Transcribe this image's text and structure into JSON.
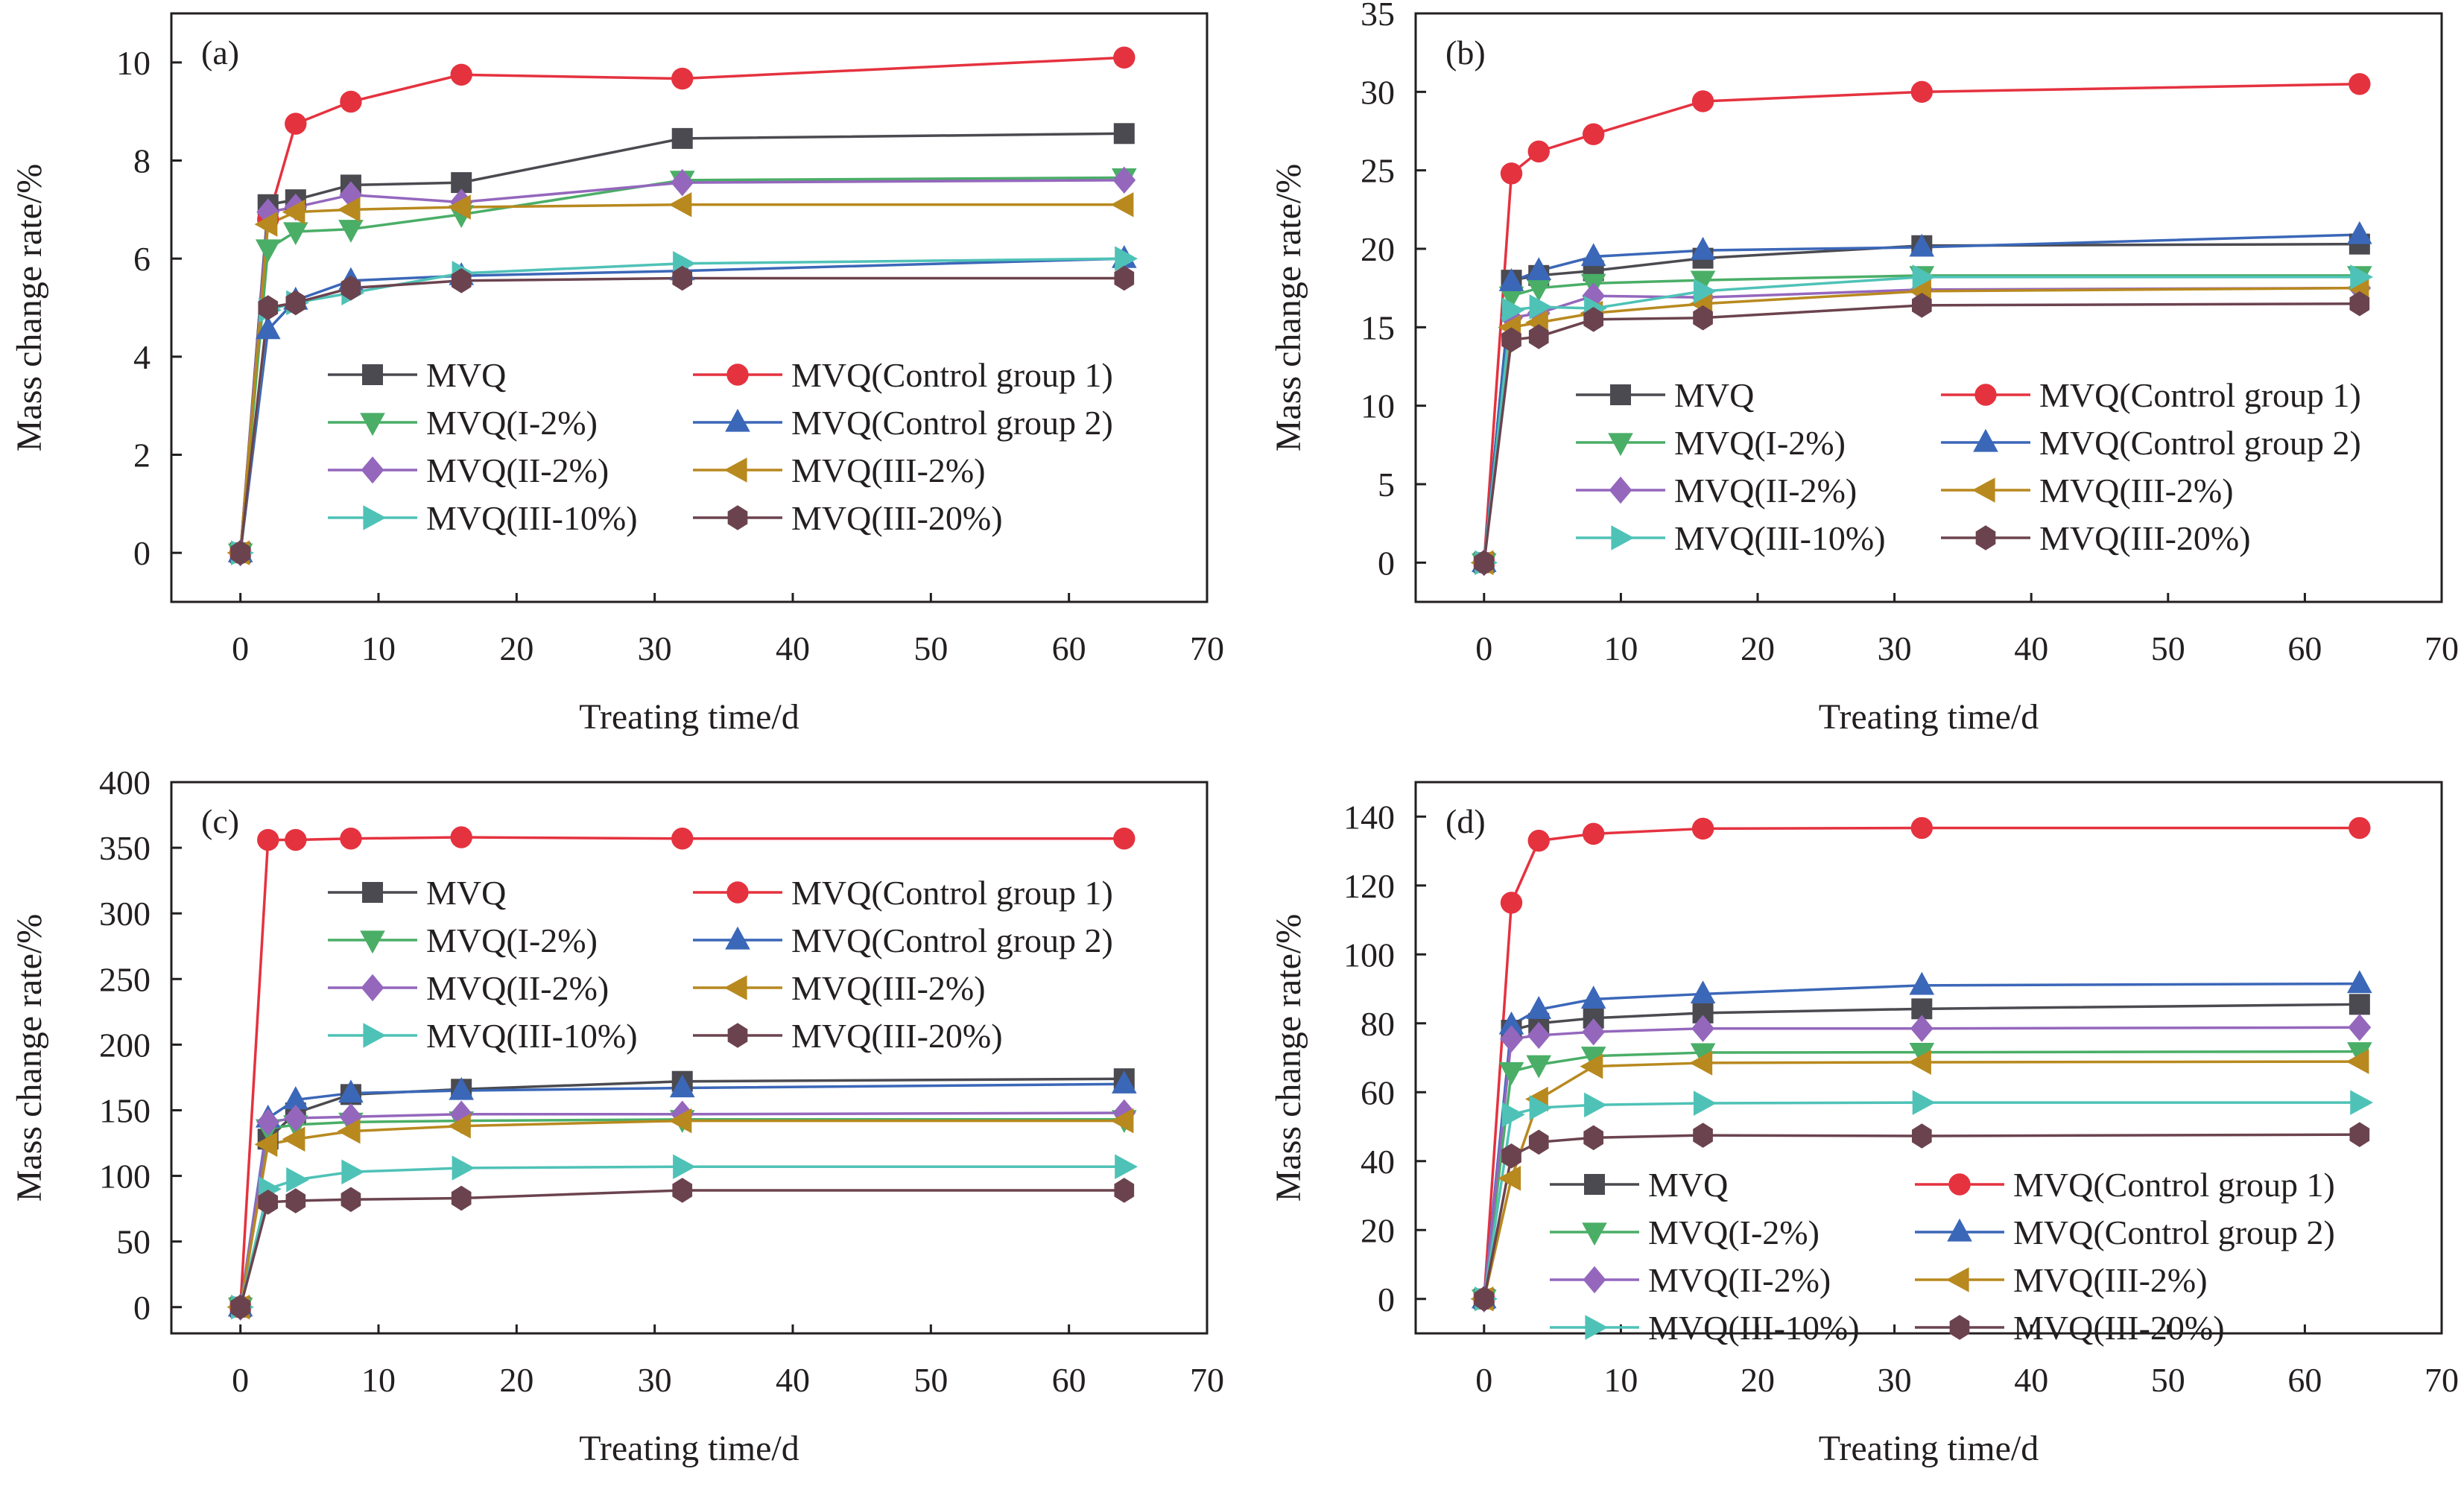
{
  "series_styles": [
    {
      "name": "MVQ",
      "color": "#4a4a50",
      "marker": "square"
    },
    {
      "name": "MVQ(Control group 1)",
      "color": "#e5323f",
      "marker": "circle"
    },
    {
      "name": "MVQ(I-2%)",
      "color": "#4aae67",
      "marker": "triangle-down"
    },
    {
      "name": "MVQ(Control group 2)",
      "color": "#3b67b8",
      "marker": "triangle-up"
    },
    {
      "name": "MVQ(II-2%)",
      "color": "#9467bd",
      "marker": "diamond"
    },
    {
      "name": "MVQ(III-2%)",
      "color": "#b8891e",
      "marker": "triangle-left"
    },
    {
      "name": "MVQ(III-10%)",
      "color": "#4fc2b7",
      "marker": "triangle-right"
    },
    {
      "name": "MVQ(III-20%)",
      "color": "#6b434e",
      "marker": "hexagon"
    }
  ],
  "chart_data": [
    {
      "type": "line",
      "panel_label": "(a)",
      "xlabel": "Treating time/d",
      "ylabel": "Mass change rate/%",
      "xlim": [
        -5,
        70
      ],
      "ylim": [
        -1,
        11
      ],
      "xticks": [
        0,
        10,
        20,
        30,
        40,
        50,
        60,
        70
      ],
      "yticks": [
        0,
        2,
        4,
        6,
        8,
        10
      ],
      "legend_position": "lower-right",
      "x": [
        0,
        2,
        4,
        8,
        16,
        32,
        64
      ],
      "series": [
        {
          "name": "MVQ",
          "values": [
            0,
            7.1,
            7.2,
            7.5,
            7.55,
            8.45,
            8.55
          ]
        },
        {
          "name": "MVQ(Control group 1)",
          "values": [
            0,
            6.8,
            8.75,
            9.2,
            9.75,
            9.67,
            10.1
          ]
        },
        {
          "name": "MVQ(I-2%)",
          "values": [
            0,
            6.2,
            6.55,
            6.6,
            6.9,
            7.6,
            7.65
          ]
        },
        {
          "name": "MVQ(Control group 2)",
          "values": [
            0,
            4.55,
            5.15,
            5.55,
            5.65,
            5.75,
            6.0
          ]
        },
        {
          "name": "MVQ(II-2%)",
          "values": [
            0,
            6.95,
            7.05,
            7.3,
            7.15,
            7.55,
            7.6
          ]
        },
        {
          "name": "MVQ(III-2%)",
          "values": [
            0,
            6.7,
            6.95,
            7.0,
            7.05,
            7.1,
            7.1
          ]
        },
        {
          "name": "MVQ(III-10%)",
          "values": [
            0,
            4.95,
            5.1,
            5.3,
            5.7,
            5.9,
            6.0
          ]
        },
        {
          "name": "MVQ(III-20%)",
          "values": [
            0,
            5.0,
            5.1,
            5.4,
            5.55,
            5.6,
            5.6
          ]
        }
      ]
    },
    {
      "type": "line",
      "panel_label": "(b)",
      "xlabel": "Treating time/d",
      "ylabel": "Mass change rate/%",
      "xlim": [
        -5,
        70
      ],
      "ylim": [
        -2.5,
        35
      ],
      "xticks": [
        0,
        10,
        20,
        30,
        40,
        50,
        60,
        70
      ],
      "yticks": [
        0,
        5,
        10,
        15,
        20,
        25,
        30,
        35
      ],
      "legend_position": "lower-right",
      "x": [
        0,
        2,
        4,
        8,
        16,
        32,
        64
      ],
      "series": [
        {
          "name": "MVQ",
          "values": [
            0,
            18.0,
            18.3,
            18.6,
            19.4,
            20.2,
            20.3
          ]
        },
        {
          "name": "MVQ(Control group 1)",
          "values": [
            0,
            24.8,
            26.2,
            27.3,
            29.4,
            30.0,
            30.5
          ]
        },
        {
          "name": "MVQ(I-2%)",
          "values": [
            0,
            17.0,
            17.5,
            17.8,
            18.0,
            18.3,
            18.3
          ]
        },
        {
          "name": "MVQ(Control group 2)",
          "values": [
            0,
            17.9,
            18.6,
            19.5,
            19.9,
            20.1,
            20.9
          ]
        },
        {
          "name": "MVQ(II-2%)",
          "values": [
            0,
            15.6,
            15.9,
            17.0,
            16.9,
            17.4,
            17.5
          ]
        },
        {
          "name": "MVQ(III-2%)",
          "values": [
            0,
            15.0,
            15.3,
            15.9,
            16.5,
            17.3,
            17.5
          ]
        },
        {
          "name": "MVQ(III-10%)",
          "values": [
            0,
            16.1,
            16.3,
            16.2,
            17.3,
            18.2,
            18.2
          ]
        },
        {
          "name": "MVQ(III-20%)",
          "values": [
            0,
            14.2,
            14.4,
            15.5,
            15.6,
            16.4,
            16.5
          ]
        }
      ]
    },
    {
      "type": "line",
      "panel_label": "(c)",
      "xlabel": "Treating time/d",
      "ylabel": "Mass change rate/%",
      "xlim": [
        -5,
        70
      ],
      "ylim": [
        -20,
        400
      ],
      "xticks": [
        0,
        10,
        20,
        30,
        40,
        50,
        60,
        70
      ],
      "yticks": [
        0,
        50,
        100,
        150,
        200,
        250,
        300,
        350,
        400
      ],
      "legend_position": "upper-right",
      "x": [
        0,
        2,
        4,
        8,
        16,
        32,
        64
      ],
      "series": [
        {
          "name": "MVQ",
          "values": [
            0,
            128,
            148,
            162,
            166,
            172,
            174
          ]
        },
        {
          "name": "MVQ(Control group 1)",
          "values": [
            0,
            356,
            356,
            357,
            358,
            357,
            357
          ]
        },
        {
          "name": "MVQ(I-2%)",
          "values": [
            0,
            136,
            139,
            141,
            142,
            143,
            143
          ]
        },
        {
          "name": "MVQ(Control group 2)",
          "values": [
            0,
            144,
            158,
            163,
            165,
            167,
            170
          ]
        },
        {
          "name": "MVQ(II-2%)",
          "values": [
            0,
            141,
            144,
            145,
            147,
            147,
            148
          ]
        },
        {
          "name": "MVQ(III-2%)",
          "values": [
            0,
            124,
            128,
            134,
            138,
            142,
            142
          ]
        },
        {
          "name": "MVQ(III-10%)",
          "values": [
            0,
            90,
            97,
            103,
            106,
            107,
            107
          ]
        },
        {
          "name": "MVQ(III-20%)",
          "values": [
            0,
            80,
            81,
            82,
            83,
            89,
            89
          ]
        }
      ]
    },
    {
      "type": "line",
      "panel_label": "(d)",
      "xlabel": "Treating time/d",
      "ylabel": "Mass change rate/%",
      "xlim": [
        -5,
        70
      ],
      "ylim": [
        -10,
        150
      ],
      "xticks": [
        0,
        10,
        20,
        30,
        40,
        50,
        60,
        70
      ],
      "yticks": [
        0,
        20,
        40,
        60,
        80,
        100,
        120,
        140
      ],
      "legend_position": "lower-right",
      "x": [
        0,
        2,
        4,
        8,
        16,
        32,
        64
      ],
      "series": [
        {
          "name": "MVQ",
          "values": [
            0,
            78,
            80,
            81.5,
            83,
            84.2,
            85.5
          ]
        },
        {
          "name": "MVQ(Control group 1)",
          "values": [
            0,
            115,
            133,
            135,
            136.5,
            136.7,
            136.7
          ]
        },
        {
          "name": "MVQ(I-2%)",
          "values": [
            0,
            66,
            68,
            70.5,
            71.5,
            71.6,
            71.8
          ]
        },
        {
          "name": "MVQ(Control group 2)",
          "values": [
            0,
            79.5,
            84,
            87,
            88.5,
            91,
            91.5
          ]
        },
        {
          "name": "MVQ(II-2%)",
          "values": [
            0,
            75.5,
            76.5,
            77.5,
            78.5,
            78.5,
            78.8
          ]
        },
        {
          "name": "MVQ(III-2%)",
          "values": [
            0,
            35,
            58,
            67.5,
            68.5,
            68.7,
            68.9
          ]
        },
        {
          "name": "MVQ(III-10%)",
          "values": [
            0,
            53.5,
            55.5,
            56.3,
            56.8,
            57,
            57
          ]
        },
        {
          "name": "MVQ(III-20%)",
          "values": [
            0,
            41.5,
            45.5,
            46.8,
            47.5,
            47.3,
            47.7
          ]
        }
      ]
    }
  ]
}
